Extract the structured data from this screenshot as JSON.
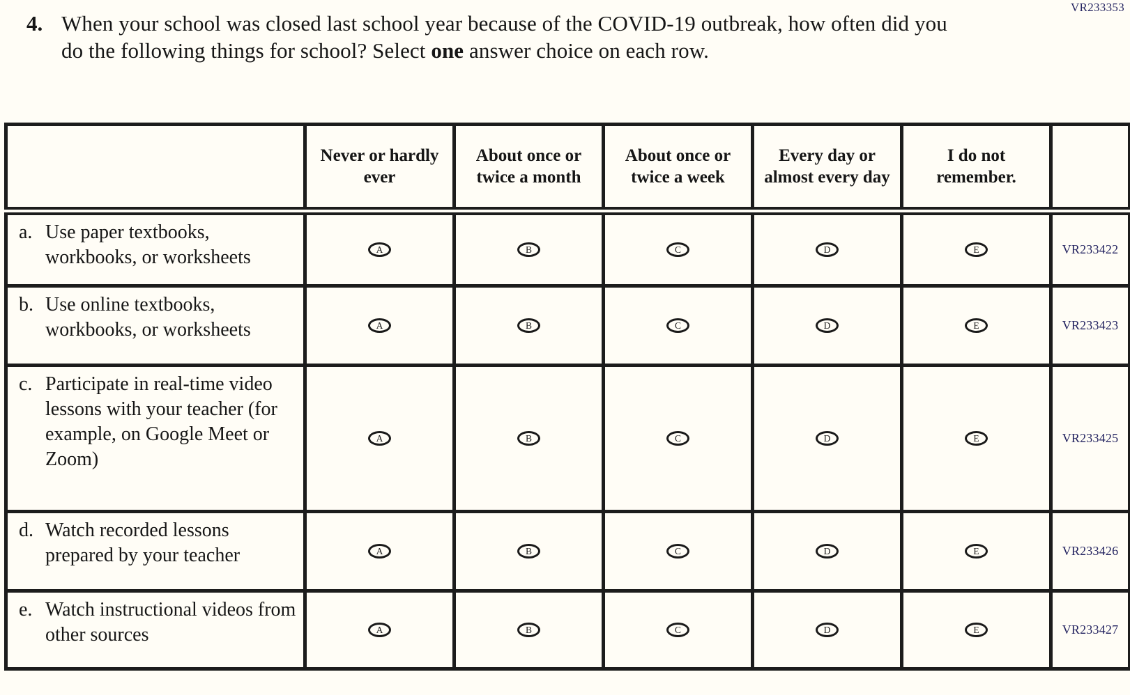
{
  "page": {
    "form_code": "VR233353"
  },
  "question": {
    "number": "4.",
    "text_before_bold": "When your school was closed last school year because of the COVID-19 outbreak, how often did you do the following things for school? Select ",
    "bold_word": "one",
    "text_after_bold": " answer choice on each row."
  },
  "table": {
    "column_headers": [
      "Never or hardly ever",
      "About once or twice a month",
      "About once or twice a week",
      "Every day or almost every day",
      "I do not remember."
    ],
    "answer_options": [
      "A",
      "B",
      "C",
      "D",
      "E"
    ],
    "rows": [
      {
        "letter": "a.",
        "label": "Use paper textbooks, workbooks, or worksheets",
        "code": "VR233422"
      },
      {
        "letter": "b.",
        "label": "Use online textbooks, workbooks, or worksheets",
        "code": "VR233423"
      },
      {
        "letter": "c.",
        "label": "Participate in real-time video lessons with your teacher (for example, on Google Meet or Zoom)",
        "code": "VR233425"
      },
      {
        "letter": "d.",
        "label": "Watch recorded lessons prepared by your teacher",
        "code": "VR233426"
      },
      {
        "letter": "e.",
        "label": "Watch instructional videos from other sources",
        "code": "VR233427"
      }
    ]
  }
}
